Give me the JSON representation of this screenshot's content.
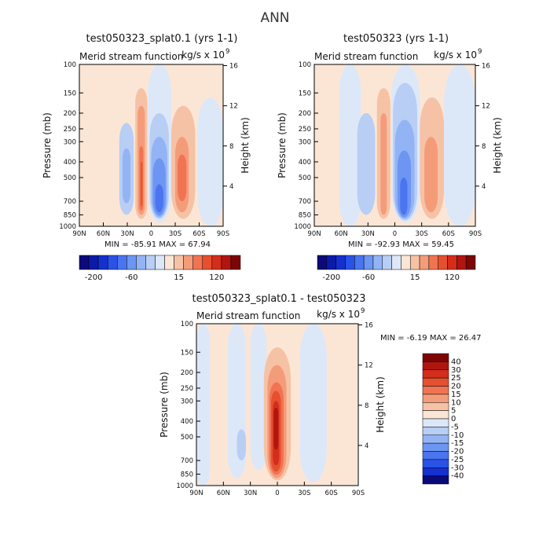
{
  "figure": {
    "title": "ANN"
  },
  "colors": {
    "neg": [
      "#0a0a7a",
      "#0b1aa8",
      "#1530cf",
      "#2a52e6",
      "#4a74f0",
      "#6d95f2",
      "#93b4f4",
      "#b8cef5",
      "#dce8f8"
    ],
    "pos": [
      "#fbe6d6",
      "#f6c2a5",
      "#f49c7a",
      "#f17452",
      "#e6502f",
      "#d42d1b",
      "#b01510",
      "#7d0505"
    ]
  },
  "chart_data": [
    {
      "type": "heatmap",
      "title": "test050323_splat0.1 (yrs 1-1)",
      "subtitle": "Merid stream function",
      "units": "kg/s x 10",
      "units_exp": "9",
      "ylabel": "Pressure (mb)",
      "ylabel_right": "Height (km)",
      "x_ticks": [
        "90N",
        "60N",
        "30N",
        "0",
        "30S",
        "60S",
        "90S"
      ],
      "y_ticks": [
        "100",
        "150",
        "200",
        "250",
        "300",
        "400",
        "500",
        "700",
        "850",
        "1000"
      ],
      "height_ticks": [
        "4",
        "8",
        "12",
        "16"
      ],
      "min_label": "MIN =",
      "min": "-85.91",
      "max_label": "MAX =",
      "max": "67.94",
      "colorbar": {
        "orientation": "horizontal",
        "labels": [
          "-200",
          "-60",
          "15",
          "120"
        ]
      },
      "cells": [
        {
          "lat0": -40,
          "lat1": -22,
          "p0": 230,
          "p1": 850,
          "level": -2
        },
        {
          "lat0": -36,
          "lat1": -26,
          "p0": 330,
          "p1": 720,
          "level": -3
        },
        {
          "lat0": -20,
          "lat1": -5,
          "p0": 140,
          "p1": 900,
          "level": 1
        },
        {
          "lat0": -17,
          "lat1": -8,
          "p0": 180,
          "p1": 850,
          "level": 2
        },
        {
          "lat0": -15,
          "lat1": -10,
          "p0": 320,
          "p1": 800,
          "level": 3
        },
        {
          "lat0": -13,
          "lat1": -11,
          "p0": 400,
          "p1": 750,
          "level": 4
        },
        {
          "lat0": -4,
          "lat1": 25,
          "p0": 100,
          "p1": 950,
          "level": -1
        },
        {
          "lat0": -2,
          "lat1": 22,
          "p0": 200,
          "p1": 900,
          "level": -2
        },
        {
          "lat0": 0,
          "lat1": 20,
          "p0": 280,
          "p1": 880,
          "level": -3
        },
        {
          "lat0": 2,
          "lat1": 18,
          "p0": 380,
          "p1": 860,
          "level": -4
        },
        {
          "lat0": 5,
          "lat1": 15,
          "p0": 550,
          "p1": 820,
          "level": -5
        },
        {
          "lat0": 25,
          "lat1": 55,
          "p0": 180,
          "p1": 900,
          "level": 1
        },
        {
          "lat0": 30,
          "lat1": 47,
          "p0": 280,
          "p1": 820,
          "level": 2
        },
        {
          "lat0": 33,
          "lat1": 44,
          "p0": 360,
          "p1": 700,
          "level": 3
        },
        {
          "lat0": 58,
          "lat1": 90,
          "p0": 160,
          "p1": 1000,
          "level": -1
        }
      ]
    },
    {
      "type": "heatmap",
      "title": "test050323 (yrs 1-1)",
      "subtitle": "Merid stream function",
      "units": "kg/s x 10",
      "units_exp": "9",
      "ylabel": "Pressure (mb)",
      "ylabel_right": "Height (km)",
      "x_ticks": [
        "90N",
        "60N",
        "30N",
        "0",
        "30S",
        "60S",
        "90S"
      ],
      "y_ticks": [
        "100",
        "150",
        "200",
        "250",
        "300",
        "400",
        "500",
        "700",
        "850",
        "1000"
      ],
      "height_ticks": [
        "4",
        "8",
        "12",
        "16"
      ],
      "min_label": "MIN =",
      "min": "-92.93",
      "max_label": "MAX =",
      "max": "59.45",
      "colorbar": {
        "orientation": "horizontal",
        "labels": [
          "-200",
          "-60",
          "15",
          "120"
        ]
      },
      "cells": [
        {
          "lat0": -62,
          "lat1": -38,
          "p0": 100,
          "p1": 1000,
          "level": -1
        },
        {
          "lat0": -42,
          "lat1": -22,
          "p0": 200,
          "p1": 850,
          "level": -2
        },
        {
          "lat0": -20,
          "lat1": -5,
          "p0": 140,
          "p1": 900,
          "level": 1
        },
        {
          "lat0": -16,
          "lat1": -9,
          "p0": 200,
          "p1": 850,
          "level": 2
        },
        {
          "lat0": -4,
          "lat1": 28,
          "p0": 100,
          "p1": 950,
          "level": -1
        },
        {
          "lat0": -2,
          "lat1": 25,
          "p0": 130,
          "p1": 920,
          "level": -2
        },
        {
          "lat0": 0,
          "lat1": 22,
          "p0": 220,
          "p1": 900,
          "level": -3
        },
        {
          "lat0": 3,
          "lat1": 18,
          "p0": 340,
          "p1": 880,
          "level": -4
        },
        {
          "lat0": 6,
          "lat1": 14,
          "p0": 500,
          "p1": 850,
          "level": -5
        },
        {
          "lat0": 28,
          "lat1": 55,
          "p0": 160,
          "p1": 900,
          "level": 1
        },
        {
          "lat0": 33,
          "lat1": 48,
          "p0": 280,
          "p1": 820,
          "level": 2
        },
        {
          "lat0": 55,
          "lat1": 90,
          "p0": 100,
          "p1": 1000,
          "level": -1
        }
      ]
    },
    {
      "type": "heatmap",
      "title": "test050323_splat0.1 - test050323",
      "subtitle": "Merid stream function",
      "units": "kg/s x 10",
      "units_exp": "9",
      "ylabel": "Pressure (mb)",
      "ylabel_right": "Height (km)",
      "x_ticks": [
        "90N",
        "60N",
        "30N",
        "0",
        "30S",
        "60S",
        "90S"
      ],
      "y_ticks": [
        "100",
        "150",
        "200",
        "250",
        "300",
        "400",
        "500",
        "700",
        "850",
        "1000"
      ],
      "height_ticks": [
        "4",
        "8",
        "12",
        "16"
      ],
      "min_label": "MIN =",
      "min": "-6.19",
      "max_label": "MAX =",
      "max": "26.47",
      "colorbar": {
        "orientation": "vertical",
        "labels": [
          "40",
          "30",
          "25",
          "20",
          "15",
          "10",
          "5",
          "0",
          "-5",
          "-10",
          "-15",
          "-20",
          "-25",
          "-30",
          "-40"
        ]
      },
      "cells": [
        {
          "lat0": -90,
          "lat1": -75,
          "p0": 100,
          "p1": 1000,
          "level": -1
        },
        {
          "lat0": -55,
          "lat1": -35,
          "p0": 100,
          "p1": 900,
          "level": -1
        },
        {
          "lat0": -45,
          "lat1": -35,
          "p0": 450,
          "p1": 700,
          "level": -2
        },
        {
          "lat0": -30,
          "lat1": -12,
          "p0": 100,
          "p1": 800,
          "level": -1
        },
        {
          "lat0": -15,
          "lat1": 15,
          "p0": 140,
          "p1": 930,
          "level": 1
        },
        {
          "lat0": -11,
          "lat1": 10,
          "p0": 180,
          "p1": 900,
          "level": 2
        },
        {
          "lat0": -9,
          "lat1": 7,
          "p0": 230,
          "p1": 860,
          "level": 3
        },
        {
          "lat0": -7,
          "lat1": 4,
          "p0": 260,
          "p1": 820,
          "level": 4
        },
        {
          "lat0": -5,
          "lat1": 2,
          "p0": 300,
          "p1": 750,
          "level": 5
        },
        {
          "lat0": -4,
          "lat1": 1,
          "p0": 330,
          "p1": 600,
          "level": 6
        },
        {
          "lat0": 25,
          "lat1": 55,
          "p0": 100,
          "p1": 950,
          "level": -1
        }
      ]
    }
  ]
}
